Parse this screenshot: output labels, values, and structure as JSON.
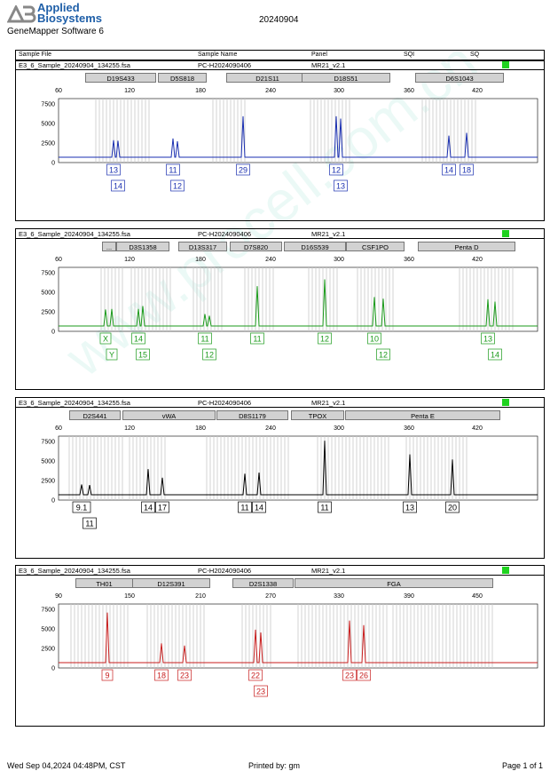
{
  "header": {
    "brand_line1": "Applied",
    "brand_line2": "Biosystems",
    "software": "GeneMapper Software 6",
    "date": "20240904"
  },
  "columns": [
    "Sample File",
    "Sample Name",
    "Panel",
    "SQI",
    "SQ"
  ],
  "panels": [
    {
      "file": "E3_6_Sample_20240904_134255.fsa",
      "name": "PC-H2024090406",
      "panel": "MR21_v2.1",
      "status_color": "#1fd21f",
      "color": "#1a2fb0",
      "markers": [
        "D19S433",
        "D5S818",
        "D21S11",
        "D18S51",
        "D6S1043"
      ],
      "x_ticks": [
        "60",
        "120",
        "180",
        "240",
        "300",
        "360",
        "420"
      ],
      "y_ticks": [
        "7500",
        "5000",
        "2500",
        "0"
      ],
      "alleles_row1": [
        "13",
        "11",
        "29",
        "12",
        "14",
        "18"
      ],
      "alleles_row2": [
        "14",
        "12",
        "13"
      ]
    },
    {
      "file": "E3_6_Sample_20240904_134255.fsa",
      "name": "PC-H2024090406",
      "panel": "MR21_v2.1",
      "status_color": "#1fd21f",
      "color": "#1a9a1a",
      "markers": [
        "...",
        "D3S1358",
        "D13S317",
        "D7S820",
        "D16S539",
        "CSF1PO",
        "Penta D"
      ],
      "x_ticks": [
        "60",
        "120",
        "180",
        "240",
        "300",
        "360",
        "420"
      ],
      "y_ticks": [
        "7500",
        "5000",
        "2500",
        "0"
      ],
      "alleles_row1": [
        "X",
        "14",
        "11",
        "11",
        "12",
        "10",
        "13"
      ],
      "alleles_row2": [
        "Y",
        "15",
        "12",
        "12",
        "14"
      ]
    },
    {
      "file": "E3_6_Sample_20240904_134255.fsa",
      "name": "PC-H2024090406",
      "panel": "MR21_v2.1",
      "status_color": "#1fd21f",
      "color": "#000000",
      "markers": [
        "D2S441",
        "vWA",
        "D8S1179",
        "TPOX",
        "Penta E"
      ],
      "x_ticks": [
        "60",
        "120",
        "180",
        "240",
        "300",
        "360",
        "420"
      ],
      "y_ticks": [
        "7500",
        "5000",
        "2500",
        "0"
      ],
      "alleles_row1": [
        "9.1",
        "14",
        "17",
        "11",
        "14",
        "11",
        "13",
        "20"
      ],
      "alleles_row2": [
        "11"
      ]
    },
    {
      "file": "E3_6_Sample_20240904_134255.fsa",
      "name": "PC-H2024090406",
      "panel": "MR21_v2.1",
      "status_color": "#1fd21f",
      "color": "#c81e1e",
      "markers": [
        "TH01",
        "D12S391",
        "D2S1338",
        "FGA"
      ],
      "x_ticks": [
        "90",
        "150",
        "210",
        "270",
        "330",
        "390",
        "450"
      ],
      "y_ticks": [
        "7500",
        "5000",
        "2500",
        "0"
      ],
      "alleles_row1": [
        "9",
        "18",
        "23",
        "22",
        "23",
        "26"
      ],
      "alleles_row2": [
        "23"
      ]
    }
  ],
  "footer": {
    "left": "Wed Sep 04,2024 04:48PM, CST",
    "center": "Printed by: gm",
    "right": "Page 1 of 1"
  },
  "watermark": "www.procell.com.cn"
}
